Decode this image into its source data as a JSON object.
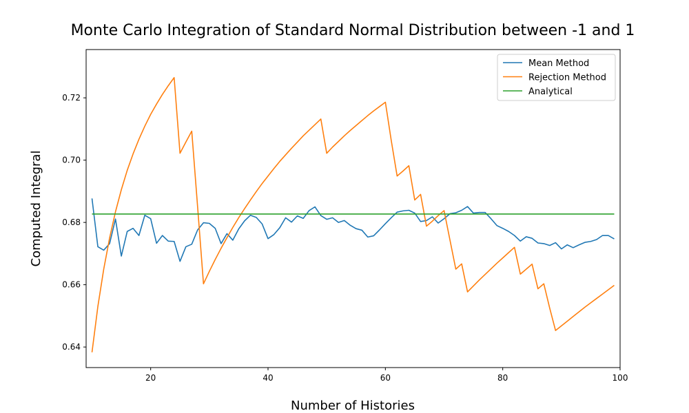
{
  "chart_data": {
    "type": "line",
    "title": "Monte Carlo Integration of Standard Normal Distribution between -1 and 1",
    "xlabel": "Number of Histories",
    "ylabel": "Computed Integral",
    "xlim": [
      9,
      100
    ],
    "ylim": [
      0.6334,
      0.7355
    ],
    "xticks": [
      20,
      40,
      60,
      80,
      100
    ],
    "yticks": [
      0.64,
      0.66,
      0.68,
      0.7,
      0.72
    ],
    "ytick_labels": [
      "0.64",
      "0.66",
      "0.68",
      "0.70",
      "0.72"
    ],
    "xtick_labels": [
      "20",
      "40",
      "60",
      "80",
      "100"
    ],
    "grid": false,
    "legend_position": "top-right",
    "series": [
      {
        "name": "Mean Method",
        "color": "#1f77b4",
        "x": [
          10,
          11,
          12,
          13,
          14,
          15,
          16,
          17,
          18,
          19,
          20,
          21,
          22,
          23,
          24,
          25,
          26,
          27,
          28,
          29,
          30,
          31,
          32,
          33,
          34,
          35,
          36,
          37,
          38,
          39,
          40,
          41,
          42,
          43,
          44,
          45,
          46,
          47,
          48,
          49,
          50,
          51,
          52,
          53,
          54,
          55,
          56,
          57,
          58,
          59,
          60,
          61,
          62,
          63,
          64,
          65,
          66,
          67,
          68,
          69,
          70,
          71,
          72,
          73,
          74,
          75,
          76,
          77,
          78,
          79,
          80,
          81,
          82,
          83,
          84,
          85,
          86,
          87,
          88,
          89,
          90,
          91,
          92,
          93,
          94,
          95,
          96,
          97,
          98,
          99
        ],
        "y": [
          0.6877,
          0.6722,
          0.6711,
          0.6732,
          0.6811,
          0.6692,
          0.6771,
          0.6781,
          0.6758,
          0.6823,
          0.6812,
          0.6733,
          0.6758,
          0.674,
          0.6739,
          0.6675,
          0.6722,
          0.673,
          0.6776,
          0.6799,
          0.6797,
          0.6781,
          0.6732,
          0.6764,
          0.6743,
          0.6779,
          0.6805,
          0.6823,
          0.6816,
          0.6795,
          0.6748,
          0.6761,
          0.6783,
          0.6815,
          0.6801,
          0.6821,
          0.6813,
          0.6838,
          0.685,
          0.6822,
          0.681,
          0.6815,
          0.68,
          0.6806,
          0.6791,
          0.678,
          0.6775,
          0.6753,
          0.6757,
          0.6776,
          0.6796,
          0.6815,
          0.6833,
          0.6837,
          0.6839,
          0.683,
          0.6803,
          0.6806,
          0.6818,
          0.6798,
          0.6812,
          0.6828,
          0.6831,
          0.6839,
          0.6851,
          0.683,
          0.6832,
          0.6832,
          0.6812,
          0.679,
          0.6781,
          0.6771,
          0.6758,
          0.674,
          0.6754,
          0.6749,
          0.6734,
          0.6732,
          0.6726,
          0.6735,
          0.6715,
          0.6728,
          0.6719,
          0.6728,
          0.6736,
          0.6739,
          0.6745,
          0.6758,
          0.6758,
          0.6747
        ]
      },
      {
        "name": "Rejection Method",
        "color": "#ff7f0e",
        "x": [
          10,
          11,
          12,
          13,
          14,
          15,
          16,
          17,
          18,
          19,
          20,
          21,
          22,
          23,
          24,
          25,
          26,
          27,
          28,
          29,
          30,
          31,
          32,
          33,
          34,
          35,
          36,
          37,
          38,
          39,
          40,
          41,
          42,
          43,
          44,
          45,
          46,
          47,
          48,
          49,
          50,
          51,
          52,
          53,
          54,
          55,
          56,
          57,
          58,
          59,
          60,
          61,
          62,
          63,
          64,
          65,
          66,
          67,
          68,
          69,
          70,
          71,
          72,
          73,
          74,
          75,
          76,
          77,
          78,
          79,
          80,
          81,
          82,
          83,
          84,
          85,
          86,
          87,
          88,
          89,
          90,
          91,
          92,
          93,
          94,
          95,
          96,
          97,
          98,
          99
        ],
        "y": [
          0.6383,
          0.653,
          0.665,
          0.675,
          0.6834,
          0.6905,
          0.6967,
          0.702,
          0.7067,
          0.7109,
          0.7147,
          0.718,
          0.7211,
          0.7239,
          0.7265,
          0.7022,
          0.7058,
          0.7093,
          0.685,
          0.6603,
          0.6643,
          0.6681,
          0.6717,
          0.6751,
          0.6784,
          0.6815,
          0.6844,
          0.6872,
          0.6899,
          0.6925,
          0.6949,
          0.6973,
          0.6996,
          0.7017,
          0.7038,
          0.7058,
          0.7078,
          0.7096,
          0.7114,
          0.7132,
          0.7022,
          0.7042,
          0.706,
          0.7078,
          0.7095,
          0.7111,
          0.7127,
          0.7143,
          0.7158,
          0.7172,
          0.7186,
          0.7063,
          0.6949,
          0.6965,
          0.6982,
          0.6872,
          0.689,
          0.6788,
          0.6804,
          0.6822,
          0.6838,
          0.6744,
          0.665,
          0.6667,
          0.6577,
          0.6596,
          0.6615,
          0.6633,
          0.6651,
          0.6669,
          0.6686,
          0.6703,
          0.672,
          0.6634,
          0.665,
          0.6666,
          0.6587,
          0.6603,
          0.6525,
          0.6453,
          0.6468,
          0.6483,
          0.6498,
          0.6513,
          0.6528,
          0.6542,
          0.6556,
          0.657,
          0.6584,
          0.6598
        ]
      },
      {
        "name": "Analytical",
        "color": "#2ca02c",
        "x": [
          10,
          99
        ],
        "y": [
          0.6827,
          0.6827
        ]
      }
    ]
  }
}
